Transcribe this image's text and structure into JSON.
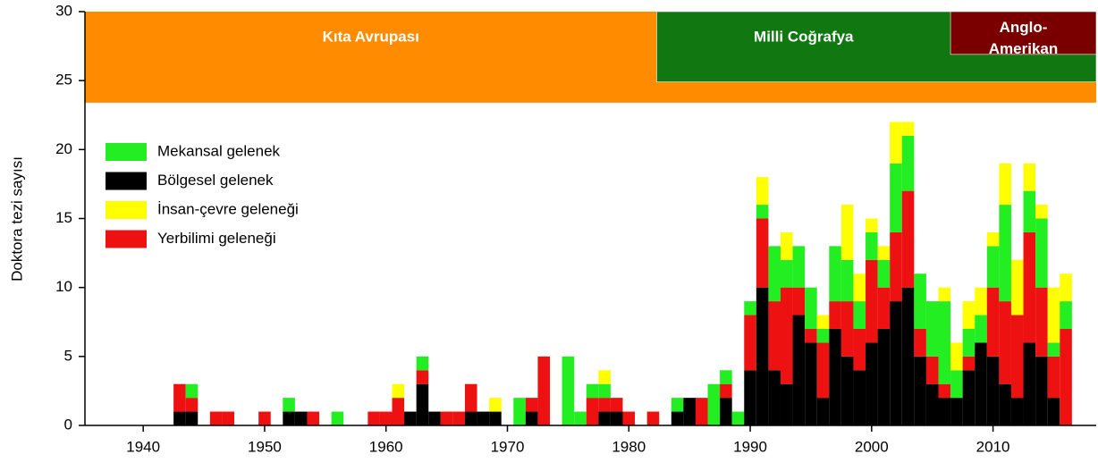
{
  "chart_data": {
    "type": "bar",
    "stacked": true,
    "ylabel": "Doktora tezi sayısı",
    "x": [
      1943,
      1944,
      1945,
      1946,
      1947,
      1948,
      1949,
      1950,
      1951,
      1952,
      1953,
      1954,
      1955,
      1956,
      1957,
      1958,
      1959,
      1960,
      1961,
      1962,
      1963,
      1964,
      1965,
      1966,
      1967,
      1968,
      1969,
      1970,
      1971,
      1972,
      1973,
      1974,
      1975,
      1976,
      1977,
      1978,
      1979,
      1980,
      1981,
      1982,
      1983,
      1984,
      1985,
      1986,
      1987,
      1988,
      1989,
      1990,
      1991,
      1992,
      1993,
      1994,
      1995,
      1996,
      1997,
      1998,
      1999,
      2000,
      2001,
      2002,
      2003,
      2004,
      2005,
      2006,
      2007,
      2008,
      2009,
      2010,
      2011,
      2012,
      2013,
      2014,
      2015,
      2016
    ],
    "series": [
      {
        "name": "Mekansal gelenek",
        "color": "#22ee22",
        "values": [
          0,
          1,
          0,
          0,
          0,
          0,
          0,
          0,
          0,
          1,
          0,
          0,
          0,
          1,
          0,
          0,
          0,
          0,
          0,
          0,
          1,
          0,
          0,
          0,
          0,
          0,
          0,
          0,
          2,
          0,
          0,
          0,
          5,
          1,
          1,
          1,
          0,
          0,
          0,
          0,
          0,
          1,
          0,
          0,
          3,
          1,
          1,
          1,
          1,
          4,
          2,
          3,
          3,
          1,
          4,
          3,
          2,
          2,
          2,
          5,
          4,
          4,
          4,
          6,
          2,
          2,
          2,
          3,
          7,
          0,
          3,
          5,
          1,
          2
        ]
      },
      {
        "name": "Bölgesel gelenek",
        "color": "#000000",
        "values": [
          1,
          1,
          0,
          0,
          0,
          0,
          0,
          0,
          0,
          1,
          1,
          0,
          0,
          0,
          0,
          0,
          0,
          0,
          0,
          1,
          3,
          1,
          0,
          0,
          1,
          1,
          1,
          0,
          0,
          1,
          0,
          0,
          0,
          0,
          0,
          1,
          1,
          0,
          0,
          0,
          0,
          1,
          2,
          0,
          0,
          2,
          0,
          4,
          10,
          4,
          3,
          8,
          6,
          2,
          7,
          5,
          4,
          6,
          7,
          9,
          10,
          5,
          3,
          2,
          2,
          4,
          6,
          5,
          3,
          2,
          6,
          5,
          2,
          0
        ]
      },
      {
        "name": "İnsan-çevre geleneği",
        "color": "#ffff00",
        "values": [
          0,
          0,
          0,
          0,
          0,
          0,
          0,
          0,
          0,
          0,
          0,
          0,
          0,
          0,
          0,
          0,
          0,
          0,
          1,
          0,
          0,
          0,
          0,
          0,
          0,
          0,
          1,
          0,
          0,
          0,
          0,
          0,
          0,
          0,
          0,
          1,
          0,
          0,
          0,
          0,
          0,
          0,
          0,
          0,
          0,
          0,
          0,
          0,
          2,
          0,
          2,
          0,
          0,
          1,
          0,
          4,
          2,
          1,
          1,
          3,
          1,
          0,
          0,
          1,
          2,
          2,
          2,
          1,
          3,
          4,
          2,
          1,
          4,
          2
        ]
      },
      {
        "name": "Yerbilimi geleneği",
        "color": "#ee1111",
        "values": [
          2,
          1,
          0,
          1,
          1,
          0,
          0,
          1,
          0,
          0,
          0,
          1,
          0,
          0,
          0,
          0,
          1,
          1,
          2,
          0,
          1,
          0,
          1,
          1,
          2,
          0,
          0,
          0,
          0,
          1,
          5,
          0,
          0,
          0,
          2,
          1,
          1,
          1,
          0,
          1,
          0,
          0,
          0,
          2,
          0,
          1,
          0,
          4,
          5,
          5,
          7,
          2,
          1,
          4,
          2,
          4,
          3,
          6,
          3,
          5,
          7,
          2,
          2,
          1,
          0,
          1,
          0,
          5,
          6,
          6,
          8,
          5,
          3,
          7
        ]
      }
    ],
    "xlim": [
      1935.2,
      2018.5
    ],
    "ylim": [
      0,
      30
    ],
    "xticks": [
      1940,
      1950,
      1960,
      1970,
      1980,
      1990,
      2000,
      2010
    ],
    "yticks": [
      0,
      5,
      10,
      15,
      20,
      25,
      30
    ],
    "periods": [
      {
        "label": "Kıta Avrupası",
        "start": 1935.2,
        "end": 2018.5,
        "ymin": 23.4,
        "color": "#ff8c00"
      },
      {
        "label": "Milli Coğrafya",
        "start": 1982.3,
        "end": 2018.5,
        "ymin": 24.9,
        "color": "#117711"
      },
      {
        "label": "Anglo-Amerikan",
        "start": 2006.5,
        "end": 2018.5,
        "ymin": 26.9,
        "color": "#7a0000"
      }
    ]
  }
}
